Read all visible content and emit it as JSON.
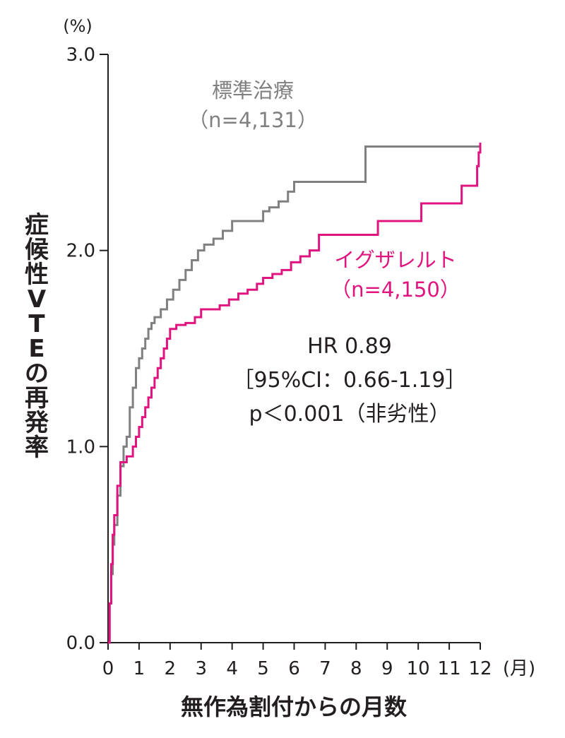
{
  "chart_data": {
    "type": "line",
    "step": true,
    "y_unit": "(%)",
    "x_unit": "(月)",
    "xlabel": "無作為割付からの月数",
    "ylabel": "症候性VTEの再発率",
    "xlim": [
      0,
      12
    ],
    "ylim": [
      0,
      3
    ],
    "x_ticks": [
      "0",
      "1",
      "2",
      "3",
      "4",
      "5",
      "6",
      "7",
      "8",
      "9",
      "10",
      "11",
      "12"
    ],
    "y_ticks": [
      "0.0",
      "1.0",
      "2.0",
      "3.0"
    ],
    "grid": false,
    "series": [
      {
        "name": "標準治療",
        "n_label": "（n=4,131）",
        "color": "#808080",
        "x": [
          0,
          0.05,
          0.1,
          0.15,
          0.2,
          0.3,
          0.4,
          0.5,
          0.6,
          0.7,
          0.8,
          0.9,
          1.0,
          1.1,
          1.2,
          1.3,
          1.4,
          1.5,
          1.7,
          1.9,
          2.1,
          2.3,
          2.5,
          2.7,
          2.9,
          3.1,
          3.4,
          3.7,
          4.0,
          4.3,
          4.7,
          5.0,
          5.2,
          5.5,
          5.8,
          6.0,
          8.2,
          8.3,
          12.0
        ],
        "y": [
          0,
          0.2,
          0.35,
          0.5,
          0.6,
          0.75,
          0.9,
          1.0,
          1.05,
          1.2,
          1.3,
          1.4,
          1.45,
          1.5,
          1.55,
          1.6,
          1.63,
          1.66,
          1.7,
          1.75,
          1.8,
          1.85,
          1.9,
          1.95,
          2.0,
          2.03,
          2.06,
          2.1,
          2.15,
          2.15,
          2.15,
          2.2,
          2.22,
          2.25,
          2.3,
          2.35,
          2.35,
          2.53,
          2.53
        ]
      },
      {
        "name": "イグザレルト",
        "n_label": "（n=4,150）",
        "color": "#e0147f",
        "x": [
          0,
          0.05,
          0.1,
          0.15,
          0.2,
          0.3,
          0.4,
          0.6,
          0.8,
          0.9,
          1.0,
          1.1,
          1.2,
          1.3,
          1.4,
          1.5,
          1.6,
          1.7,
          1.8,
          1.9,
          2.0,
          2.2,
          2.5,
          2.8,
          3.0,
          3.6,
          3.9,
          4.2,
          4.5,
          4.8,
          5.0,
          5.3,
          5.6,
          5.9,
          6.2,
          6.5,
          6.8,
          8.7,
          10.1,
          11.4,
          11.9,
          11.95,
          12.0
        ],
        "y": [
          0,
          0.2,
          0.4,
          0.55,
          0.65,
          0.8,
          0.92,
          0.95,
          1.0,
          1.05,
          1.1,
          1.15,
          1.2,
          1.25,
          1.3,
          1.35,
          1.4,
          1.45,
          1.5,
          1.55,
          1.6,
          1.62,
          1.63,
          1.66,
          1.7,
          1.72,
          1.75,
          1.78,
          1.8,
          1.83,
          1.86,
          1.88,
          1.9,
          1.94,
          1.97,
          2.0,
          2.08,
          2.15,
          2.24,
          2.33,
          2.43,
          2.5,
          2.55
        ]
      }
    ],
    "annotations": [
      "HR 0.89",
      "［95%CI：0.66-1.19］",
      "p＜0.001（非劣性）"
    ]
  }
}
